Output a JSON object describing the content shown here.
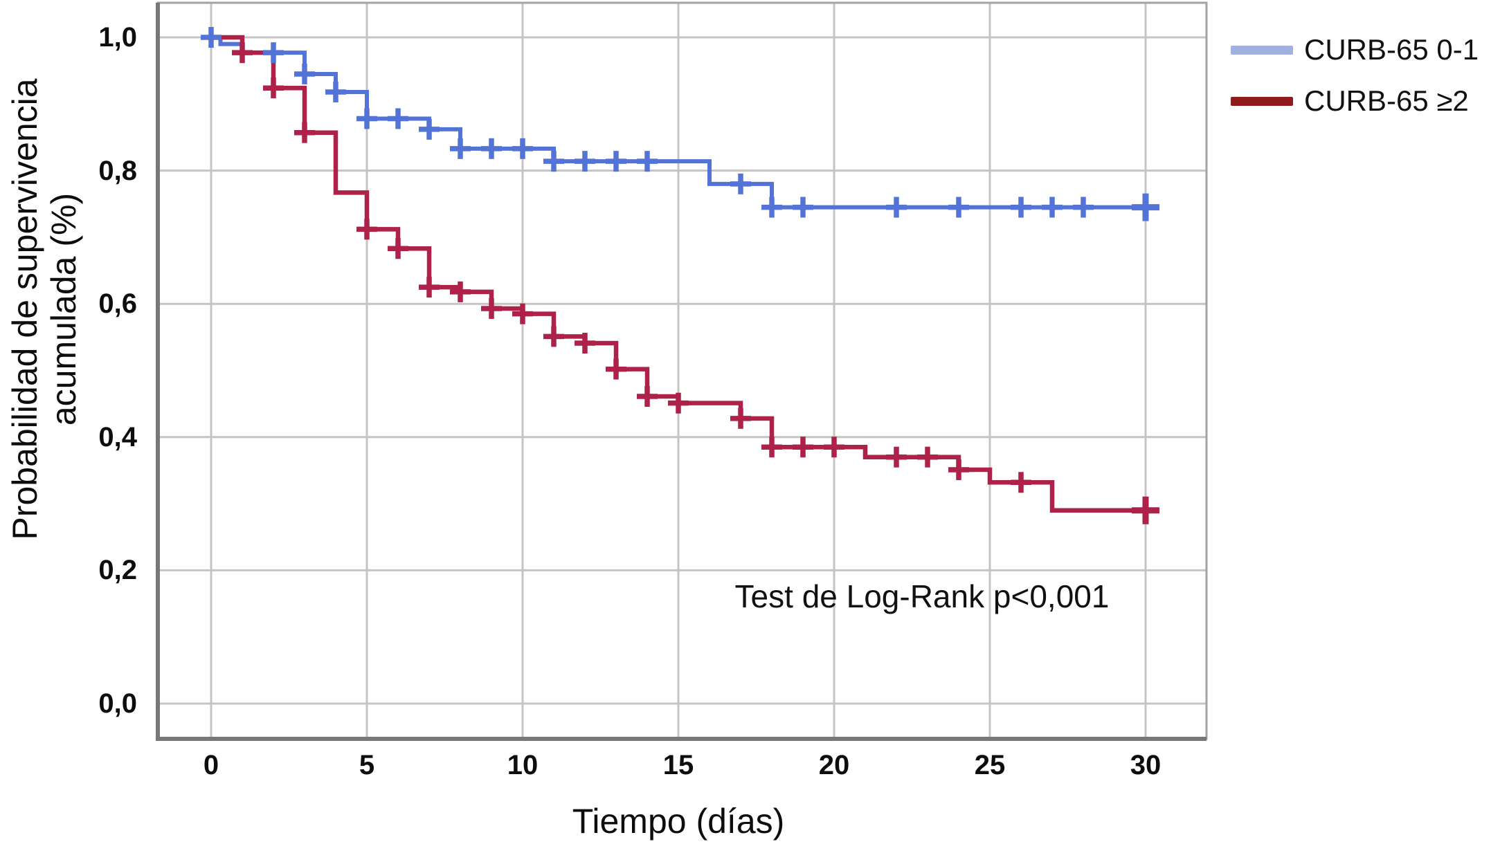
{
  "chart_data": {
    "type": "line",
    "subtype": "kaplan-meier-step",
    "title": "",
    "xlabel": "Tiempo (días)",
    "ylabel_lines": [
      "Probabilidad de supervivencia",
      "acumulada (%)"
    ],
    "x_ticks": [
      0,
      5,
      10,
      15,
      20,
      25,
      30
    ],
    "y_tick_labels": [
      "0,0",
      "0,2",
      "0,4",
      "0,6",
      "0,8",
      "1,0"
    ],
    "y_tick_values": [
      0.0,
      0.2,
      0.4,
      0.6,
      0.8,
      1.0
    ],
    "xlim": [
      -1.7,
      32
    ],
    "ylim": [
      -0.053,
      1.052
    ],
    "grid": true,
    "legend_position": "outside-top-right",
    "annotation": {
      "text": "Test de Log-Rank p<0,001",
      "x_day": 22.8,
      "y_prob": 0.16
    },
    "colors": {
      "grid": "#c4c4c4",
      "frame": "#a3a3a3",
      "axis": "#787878",
      "text": "#0d0d0d"
    },
    "series": [
      {
        "name": "CURB-65 0-1",
        "color": "#5374d6",
        "legend_swatch_color": "#a2b0df",
        "steps": [
          [
            0,
            1.0
          ],
          [
            0.3,
            0.99
          ],
          [
            1,
            0.977
          ],
          [
            3,
            0.945
          ],
          [
            4,
            0.918
          ],
          [
            5,
            0.878
          ],
          [
            7,
            0.862
          ],
          [
            8,
            0.833
          ],
          [
            11,
            0.814
          ],
          [
            16,
            0.78
          ],
          [
            18,
            0.745
          ],
          [
            30,
            0.745
          ]
        ],
        "censors": [
          [
            0,
            1.0
          ],
          [
            2,
            0.977
          ],
          [
            3,
            0.945
          ],
          [
            4,
            0.918
          ],
          [
            5,
            0.878
          ],
          [
            6,
            0.878
          ],
          [
            7,
            0.862
          ],
          [
            8,
            0.833
          ],
          [
            9,
            0.833
          ],
          [
            10,
            0.833
          ],
          [
            11,
            0.814
          ],
          [
            12,
            0.814
          ],
          [
            13,
            0.814
          ],
          [
            14,
            0.814
          ],
          [
            17,
            0.78
          ],
          [
            18,
            0.745
          ],
          [
            19,
            0.745
          ],
          [
            22,
            0.745
          ],
          [
            24,
            0.745
          ],
          [
            26,
            0.745
          ],
          [
            27,
            0.745
          ],
          [
            28,
            0.745
          ],
          [
            30,
            0.745
          ]
        ]
      },
      {
        "name": "CURB-65 ≥2",
        "color": "#ae2148",
        "legend_swatch_color": "#8f1b1d",
        "steps": [
          [
            0,
            1.0
          ],
          [
            1,
            0.977
          ],
          [
            2,
            0.924
          ],
          [
            3,
            0.857
          ],
          [
            4,
            0.767
          ],
          [
            5,
            0.712
          ],
          [
            6,
            0.683
          ],
          [
            7,
            0.625
          ],
          [
            8,
            0.618
          ],
          [
            9,
            0.593
          ],
          [
            10,
            0.585
          ],
          [
            11,
            0.551
          ],
          [
            12,
            0.541
          ],
          [
            13,
            0.502
          ],
          [
            14,
            0.461
          ],
          [
            15,
            0.451
          ],
          [
            17,
            0.428
          ],
          [
            18,
            0.385
          ],
          [
            21,
            0.37
          ],
          [
            24,
            0.351
          ],
          [
            25,
            0.332
          ],
          [
            27,
            0.29
          ],
          [
            30,
            0.29
          ]
        ],
        "censors": [
          [
            1,
            0.977
          ],
          [
            2,
            0.924
          ],
          [
            3,
            0.857
          ],
          [
            5,
            0.712
          ],
          [
            6,
            0.683
          ],
          [
            7,
            0.625
          ],
          [
            8,
            0.618
          ],
          [
            9,
            0.593
          ],
          [
            10,
            0.585
          ],
          [
            11,
            0.551
          ],
          [
            12,
            0.541
          ],
          [
            13,
            0.502
          ],
          [
            14,
            0.461
          ],
          [
            15,
            0.451
          ],
          [
            17,
            0.428
          ],
          [
            18,
            0.385
          ],
          [
            19,
            0.385
          ],
          [
            20,
            0.385
          ],
          [
            22,
            0.37
          ],
          [
            23,
            0.37
          ],
          [
            24,
            0.351
          ],
          [
            26,
            0.332
          ],
          [
            30,
            0.29
          ]
        ]
      }
    ]
  }
}
